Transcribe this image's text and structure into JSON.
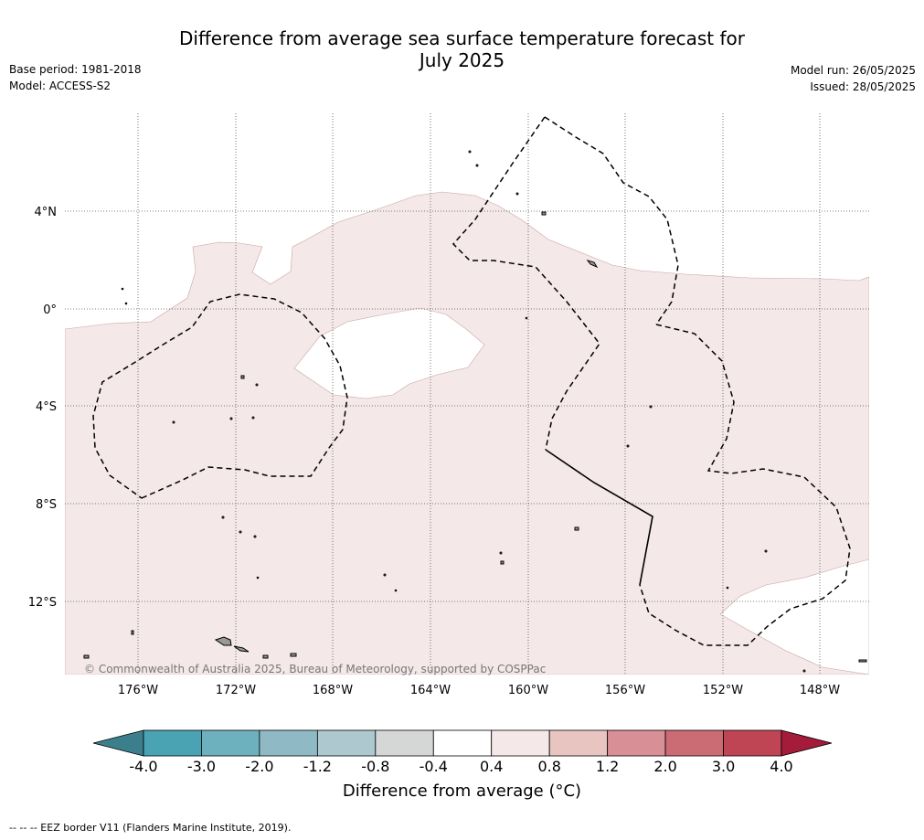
{
  "title_line1": "Difference from average sea surface temperature forecast for",
  "title_line2": "July 2025",
  "base_period": "Base period: 1981-2018",
  "model": "Model: ACCESS-S2",
  "model_run": "Model run: 26/05/2025",
  "issued": "Issued: 28/05/2025",
  "lat_labels": [
    "4°N",
    "0°",
    "4°S",
    "8°S",
    "12°S"
  ],
  "lon_labels": [
    "176°W",
    "172°W",
    "168°W",
    "164°W",
    "160°W",
    "156°W",
    "152°W",
    "148°W"
  ],
  "copyright": "© Commonwealth of Australia 2025, Bureau of Meteorology, supported by COSPPac",
  "colorbar": {
    "title": "Difference from average (°C)",
    "tick_labels": [
      "-4.0",
      "-3.0",
      "-2.0",
      "-1.2",
      "-0.8",
      "-0.4",
      "0.4",
      "0.8",
      "1.2",
      "2.0",
      "3.0",
      "4.0"
    ],
    "colors": [
      "#3b7f8c",
      "#4aa3b3",
      "#6db0be",
      "#8fbac5",
      "#adc9cf",
      "#d5d7d7",
      "#ffffff",
      "#f5e8e8",
      "#e8c5c0",
      "#d88f95",
      "#cb6b74",
      "#bf4555",
      "#a51b3a"
    ]
  },
  "anomaly_fill": "#f4e8e8",
  "footnote": "-- -- -- EEZ border V11 (Flanders Marine Institute, 2019)."
}
